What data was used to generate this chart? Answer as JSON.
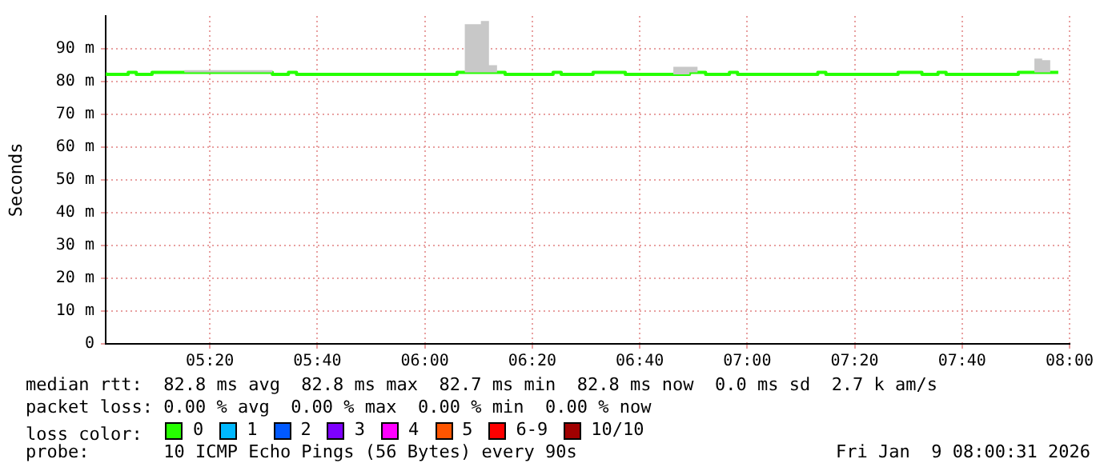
{
  "chart_data": {
    "type": "step",
    "ylabel": "Seconds",
    "legend_title": "loss color:",
    "legend": "bottom",
    "grid": true,
    "marker": "none",
    "x": [
      5.01,
      5.08,
      5.105,
      5.154,
      5.254,
      5.527,
      5.577,
      5.602,
      6.1,
      6.124,
      6.174,
      6.199,
      6.224,
      6.249,
      6.398,
      6.423,
      6.522,
      6.622,
      6.771,
      6.821,
      6.846,
      6.871,
      6.945,
      6.97,
      7.219,
      7.244,
      7.468,
      7.542,
      7.592,
      7.617,
      7.841,
      7.891,
      7.915,
      7.94,
      7.965
    ],
    "xlim": [
      5.01,
      8.0
    ],
    "xticks": [
      {
        "value": 5.333333,
        "label": "05:20"
      },
      {
        "value": 5.666667,
        "label": "05:40"
      },
      {
        "value": 6,
        "label": "06:00"
      },
      {
        "value": 6.333333,
        "label": "06:20"
      },
      {
        "value": 6.666667,
        "label": "06:40"
      },
      {
        "value": 7,
        "label": "07:00"
      },
      {
        "value": 7.333333,
        "label": "07:20"
      },
      {
        "value": 7.666667,
        "label": "07:40"
      },
      {
        "value": 8,
        "label": "08:00"
      }
    ],
    "ylim": [
      0,
      100
    ],
    "yticks": [
      0,
      {
        "value": 10,
        "label": "10 m"
      },
      {
        "value": 20,
        "label": "20 m"
      },
      {
        "value": 30,
        "label": "30 m"
      },
      {
        "value": 40,
        "label": "40 m"
      },
      {
        "value": 50,
        "label": "50 m"
      },
      {
        "value": 60,
        "label": "60 m"
      },
      {
        "value": 70,
        "label": "70 m"
      },
      {
        "value": 80,
        "label": "80 m"
      },
      {
        "value": 90,
        "label": "90 m"
      }
    ],
    "series": [
      {
        "name": "0",
        "color": "#26ff00",
        "values": [
          82.8,
          82.2,
          82.8,
          82.2,
          82.8,
          82.8,
          82.2,
          82.8,
          82.2,
          82.8,
          82.8,
          82.8,
          82.8,
          82.8,
          82.2,
          82.8,
          82.2,
          82.8,
          82.2,
          82.2,
          82.8,
          82.8,
          82.2,
          82.8,
          82.2,
          82.8,
          82.2,
          82.8,
          82.2,
          82.8,
          82.2,
          82.8,
          82.8,
          82.8,
          82.8
        ],
        "lower": [
          82.8,
          82.2,
          82.8,
          82.2,
          82.8,
          82.8,
          82.2,
          82.8,
          82.2,
          82.8,
          82.8,
          82.8,
          82.8,
          82.8,
          82.2,
          82.8,
          82.2,
          82.8,
          82.2,
          82.2,
          82.8,
          82.8,
          82.2,
          82.8,
          82.2,
          82.8,
          82.2,
          82.8,
          82.2,
          82.8,
          82.2,
          82.8,
          82.8,
          82.8,
          82.8
        ],
        "upper": [
          82.8,
          82.2,
          82.8,
          82.2,
          82.8,
          83.5,
          82.2,
          82.8,
          82.2,
          82.8,
          97.5,
          98.5,
          85,
          82.8,
          82.2,
          82.8,
          82.2,
          82.8,
          82.2,
          84.5,
          84.5,
          82.8,
          82.2,
          82.8,
          82.2,
          82.8,
          82.2,
          82.8,
          82.2,
          82.8,
          82.2,
          82.8,
          87,
          86.5,
          82.8
        ]
      },
      {
        "name": "1",
        "color": "#00b8ff",
        "values": [
          null,
          null,
          null,
          null,
          null,
          null,
          null,
          null,
          null,
          null,
          null,
          null,
          null,
          null,
          null,
          null,
          null,
          null,
          null,
          null,
          null,
          null,
          null,
          null,
          null,
          null,
          null,
          null,
          null,
          null,
          null,
          null,
          null,
          null,
          null
        ]
      },
      {
        "name": "2",
        "color": "#0059ff",
        "values": [
          null,
          null,
          null,
          null,
          null,
          null,
          null,
          null,
          null,
          null,
          null,
          null,
          null,
          null,
          null,
          null,
          null,
          null,
          null,
          null,
          null,
          null,
          null,
          null,
          null,
          null,
          null,
          null,
          null,
          null,
          null,
          null,
          null,
          null,
          null
        ]
      },
      {
        "name": "3",
        "color": "#7e00ff",
        "values": [
          null,
          null,
          null,
          null,
          null,
          null,
          null,
          null,
          null,
          null,
          null,
          null,
          null,
          null,
          null,
          null,
          null,
          null,
          null,
          null,
          null,
          null,
          null,
          null,
          null,
          null,
          null,
          null,
          null,
          null,
          null,
          null,
          null,
          null,
          null
        ]
      },
      {
        "name": "4",
        "color": "#ff00ff",
        "values": [
          null,
          null,
          null,
          null,
          null,
          null,
          null,
          null,
          null,
          null,
          null,
          null,
          null,
          null,
          null,
          null,
          null,
          null,
          null,
          null,
          null,
          null,
          null,
          null,
          null,
          null,
          null,
          null,
          null,
          null,
          null,
          null,
          null,
          null,
          null
        ]
      },
      {
        "name": "5",
        "color": "#ff5500",
        "values": [
          null,
          null,
          null,
          null,
          null,
          null,
          null,
          null,
          null,
          null,
          null,
          null,
          null,
          null,
          null,
          null,
          null,
          null,
          null,
          null,
          null,
          null,
          null,
          null,
          null,
          null,
          null,
          null,
          null,
          null,
          null,
          null,
          null,
          null,
          null
        ]
      },
      {
        "name": "6-9",
        "color": "#ff0000",
        "values": [
          null,
          null,
          null,
          null,
          null,
          null,
          null,
          null,
          null,
          null,
          null,
          null,
          null,
          null,
          null,
          null,
          null,
          null,
          null,
          null,
          null,
          null,
          null,
          null,
          null,
          null,
          null,
          null,
          null,
          null,
          null,
          null,
          null,
          null,
          null
        ]
      },
      {
        "name": "10/10",
        "color": "#a10000",
        "values": [
          null,
          null,
          null,
          null,
          null,
          null,
          null,
          null,
          null,
          null,
          null,
          null,
          null,
          null,
          null,
          null,
          null,
          null,
          null,
          null,
          null,
          null,
          null,
          null,
          null,
          null,
          null,
          null,
          null,
          null,
          null,
          null,
          null,
          null,
          null
        ]
      }
    ],
    "annotations": [
      "median rtt:  82.8 ms avg  82.8 ms max  82.7 ms min  82.8 ms now  0.0 ms sd  2.7 k am/s",
      "packet loss: 0.00 % avg  0.00 % max  0.00 % min  0.00 % now",
      "probe:       10 ICMP Echo Pings (56 Bytes) every 90s",
      "Fri Jan  9 08:00:31 2026"
    ]
  }
}
